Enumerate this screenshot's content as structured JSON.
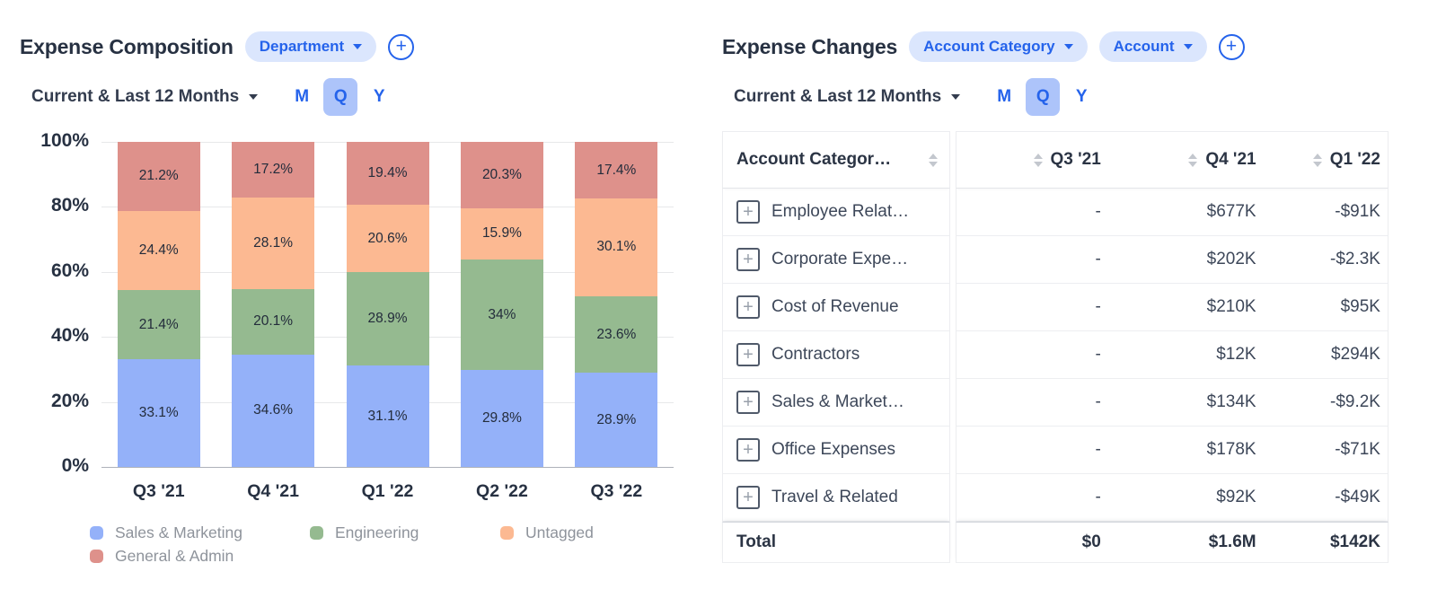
{
  "chart_data": {
    "type": "bar",
    "stacked": true,
    "units": "percent",
    "title": "Expense Composition",
    "categories": [
      "Q3 '21",
      "Q4 '21",
      "Q1 '22",
      "Q2 '22",
      "Q3 '22"
    ],
    "series": [
      {
        "name": "Sales & Marketing",
        "color": "#94b1f9",
        "values": [
          33.1,
          34.6,
          31.1,
          29.8,
          28.9
        ],
        "labels": [
          "33.1%",
          "34.6%",
          "31.1%",
          "29.8%",
          "28.9%"
        ]
      },
      {
        "name": "Engineering",
        "color": "#95ba90",
        "values": [
          21.4,
          20.1,
          28.9,
          34.0,
          23.6
        ],
        "labels": [
          "21.4%",
          "20.1%",
          "28.9%",
          "34%",
          "23.6%"
        ]
      },
      {
        "name": "Untagged",
        "color": "#fcb992",
        "values": [
          24.4,
          28.1,
          20.6,
          15.9,
          30.1
        ],
        "labels": [
          "24.4%",
          "28.1%",
          "20.6%",
          "15.9%",
          "30.1%"
        ]
      },
      {
        "name": "General & Admin",
        "color": "#de918b",
        "values": [
          21.2,
          17.2,
          19.4,
          20.3,
          17.4
        ],
        "labels": [
          "21.2%",
          "17.2%",
          "19.4%",
          "20.3%",
          "17.4%"
        ]
      }
    ],
    "y_ticks": [
      "0%",
      "20%",
      "40%",
      "60%",
      "80%",
      "100%"
    ],
    "ylim": [
      0,
      100
    ],
    "grid": true,
    "legend_position": "bottom"
  },
  "left_panel": {
    "title": "Expense Composition",
    "breakdown_pills": [
      {
        "label": "Department"
      }
    ],
    "add_icon": "+",
    "date_range": "Current & Last 12 Months",
    "granularity": {
      "options": [
        "M",
        "Q",
        "Y"
      ],
      "selected": "Q"
    }
  },
  "right_panel": {
    "title": "Expense Changes",
    "breakdown_pills": [
      {
        "label": "Account Category"
      },
      {
        "label": "Account"
      }
    ],
    "add_icon": "+",
    "date_range": "Current & Last 12 Months",
    "granularity": {
      "options": [
        "M",
        "Q",
        "Y"
      ],
      "selected": "Q"
    },
    "table": {
      "expand_icon": "+",
      "label_column": "Account Categor…",
      "value_columns": [
        "Q3 '21",
        "Q4 '21",
        "Q1 '22"
      ],
      "rows": [
        {
          "label": "Employee Relat…",
          "values": [
            "-",
            "$677K",
            "-$91K"
          ]
        },
        {
          "label": "Corporate Expe…",
          "values": [
            "-",
            "$202K",
            "-$2.3K"
          ]
        },
        {
          "label": "Cost of Revenue",
          "values": [
            "-",
            "$210K",
            "$95K"
          ]
        },
        {
          "label": "Contractors",
          "values": [
            "-",
            "$12K",
            "$294K"
          ]
        },
        {
          "label": "Sales & Market…",
          "values": [
            "-",
            "$134K",
            "-$9.2K"
          ]
        },
        {
          "label": "Office Expenses",
          "values": [
            "-",
            "$178K",
            "-$71K"
          ]
        },
        {
          "label": "Travel & Related",
          "values": [
            "-",
            "$92K",
            "-$49K"
          ]
        }
      ],
      "total_row": {
        "label": "Total",
        "values": [
          "$0",
          "$1.6M",
          "$142K"
        ]
      }
    }
  },
  "colors": {
    "accent_blue": "#2563eb",
    "pill_bg": "#dbe6fd",
    "selected_toggle_bg": "#adc4fa",
    "text_dark": "#273142",
    "legend_text_gray": "#8e939b",
    "gridline": "#e7e8ea",
    "axis_line": "#aeb2ba",
    "table_border": "#ecedf0"
  }
}
